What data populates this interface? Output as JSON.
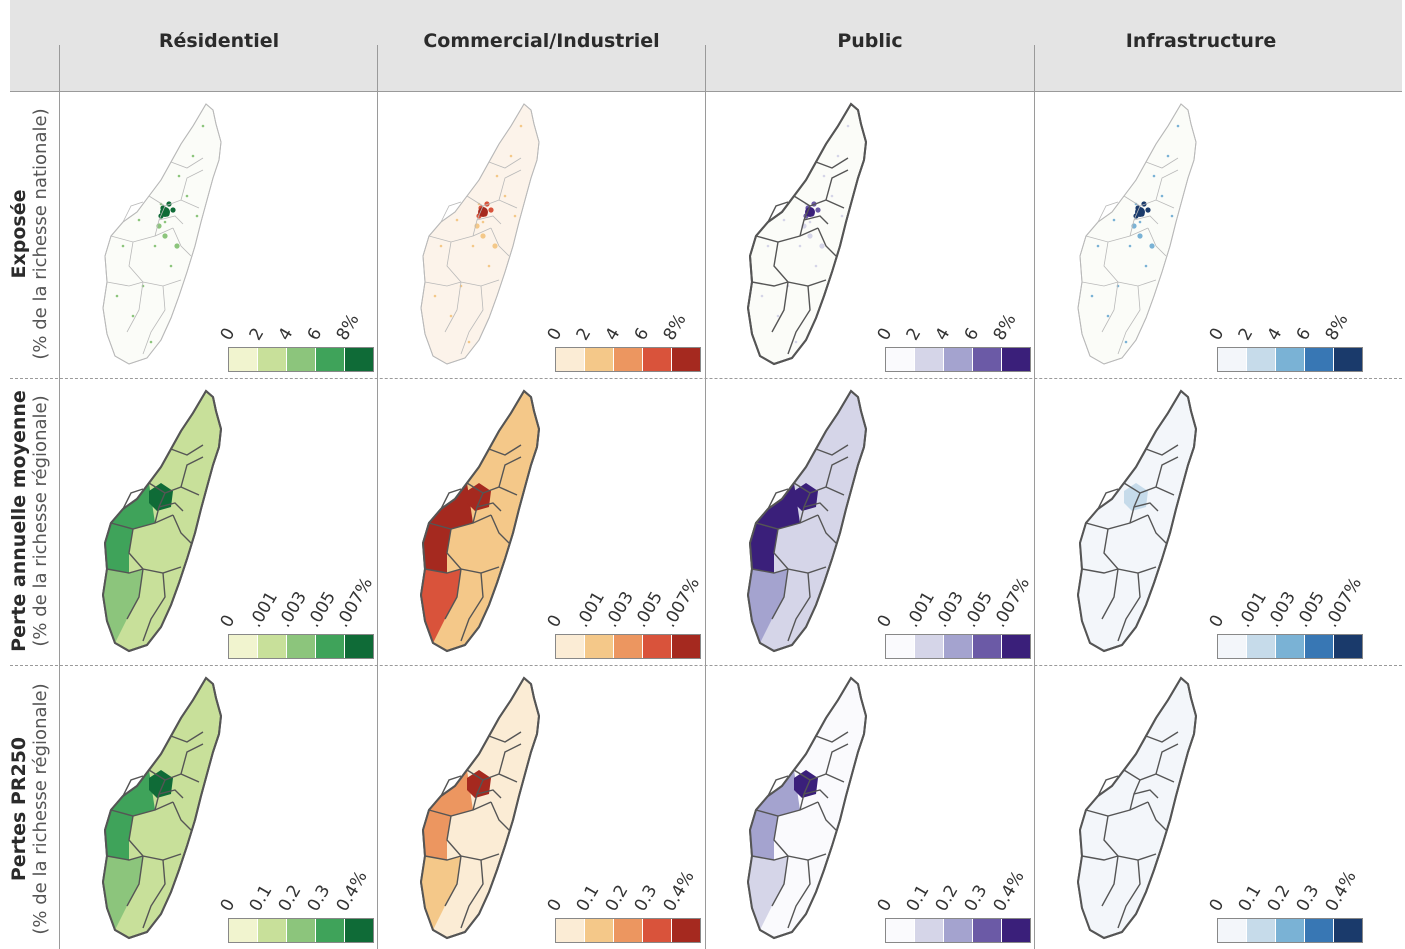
{
  "columns": [
    "Résidentiel",
    "Commercial/Industriel",
    "Public",
    "Infrastructure"
  ],
  "rows": [
    {
      "title": "Exposée",
      "subtitle": "(% de la richesse nationale)",
      "ticks": [
        "0",
        "2",
        "4",
        "6",
        "8%"
      ]
    },
    {
      "title": "Perte annuelle moyenne",
      "subtitle": "(% de la richesse régionale)",
      "ticks": [
        "0",
        ".001",
        ".003",
        ".005",
        ".007%"
      ]
    },
    {
      "title": "Pertes PR250",
      "subtitle": "(% de la richesse régionale)",
      "ticks": [
        "0",
        "0.1",
        "0.2",
        "0.3",
        "0.4%"
      ]
    }
  ],
  "palettes": {
    "Résidentiel": [
      "#f1f4cf",
      "#c8e09a",
      "#8cc57c",
      "#3fa35a",
      "#0f6b37"
    ],
    "Commercial/Industriel": [
      "#fbecd5",
      "#f4c889",
      "#ec9660",
      "#d9533b",
      "#a5291f"
    ],
    "Public": [
      "#fafafd",
      "#d5d5e8",
      "#a4a3cf",
      "#6b5aa6",
      "#3a1f7a"
    ],
    "Infrastructure": [
      "#f3f6fa",
      "#c6dbea",
      "#7ab2d5",
      "#3877b4",
      "#1a3a6b"
    ]
  },
  "map_levels": [
    [
      {
        "base": 0,
        "center": 4,
        "accent": 2
      },
      {
        "base": 0,
        "center": 3,
        "accent": 1
      },
      {
        "base": 0,
        "center": 3,
        "accent": 0
      },
      {
        "base": 0,
        "center": 4,
        "accent": 2
      }
    ],
    [
      {
        "base": 1,
        "west": 3,
        "center": 4,
        "south": 2
      },
      {
        "base": 1,
        "west": 4,
        "center": 4,
        "south": 3
      },
      {
        "base": 1,
        "west": 4,
        "center": 4,
        "south": 2
      },
      {
        "base": 0,
        "west": 0,
        "center": 1,
        "south": 0
      }
    ],
    [
      {
        "base": 1,
        "west": 3,
        "center": 4,
        "south": 2
      },
      {
        "base": 0,
        "west": 2,
        "center": 4,
        "south": 1
      },
      {
        "base": 0,
        "west": 2,
        "center": 4,
        "south": 1
      },
      {
        "base": 0,
        "west": 0,
        "center": 0,
        "south": 0
      }
    ]
  ]
}
